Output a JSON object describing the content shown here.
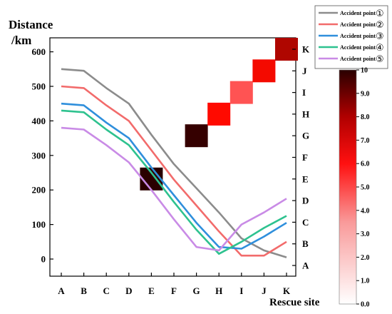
{
  "chart_data": {
    "type": "line",
    "ylabel_line1": "Distance",
    "ylabel_line2": "/km",
    "xlabel": "Rescue site",
    "categories": [
      "A",
      "B",
      "C",
      "D",
      "E",
      "F",
      "G",
      "H",
      "I",
      "J",
      "K"
    ],
    "ylim": [
      -20,
      640
    ],
    "yticks": [
      0,
      100,
      200,
      300,
      400,
      500,
      600
    ],
    "right_axis_labels": [
      "A",
      "B",
      "C",
      "D",
      "E",
      "F",
      "G",
      "H",
      "I",
      "J",
      "K"
    ],
    "legend_prefix": "Accident point",
    "series": [
      {
        "name": "Accident point ①",
        "marker": "①",
        "color": "#8c8c8c",
        "values": [
          550,
          545,
          495,
          450,
          360,
          275,
          205,
          135,
          60,
          25,
          5
        ]
      },
      {
        "name": "Accident point ②",
        "marker": "②",
        "color": "#f26b6b",
        "values": [
          500,
          495,
          445,
          400,
          315,
          230,
          155,
          80,
          10,
          10,
          50
        ]
      },
      {
        "name": "Accident point ③",
        "marker": "③",
        "color": "#2f8fdc",
        "values": [
          450,
          445,
          395,
          350,
          265,
          185,
          105,
          35,
          30,
          65,
          105
        ]
      },
      {
        "name": "Accident point ④",
        "marker": "④",
        "color": "#2ec28f",
        "values": [
          430,
          425,
          375,
          330,
          250,
          165,
          85,
          15,
          50,
          90,
          125
        ]
      },
      {
        "name": "Accident point ⑤",
        "marker": "⑤",
        "color": "#c98be6",
        "values": [
          380,
          375,
          330,
          280,
          200,
          115,
          35,
          25,
          100,
          135,
          175
        ]
      }
    ],
    "heat_cells": [
      {
        "x": "E",
        "y": "E",
        "value": 10
      },
      {
        "x": "G",
        "y": "G",
        "value": 9.8
      },
      {
        "x": "H",
        "y": "H",
        "value": 6
      },
      {
        "x": "I",
        "y": "I",
        "value": 4.2
      },
      {
        "x": "J",
        "y": "J",
        "value": 6.2
      },
      {
        "x": "K",
        "y": "K",
        "value": 7.5
      }
    ],
    "colorbar": {
      "min": 0,
      "max": 10,
      "ticks": [
        "0.0",
        "1.0",
        "2.0",
        "3.0",
        "4.0",
        "5.0",
        "6.0",
        "7.0",
        "8.0",
        "9.0",
        "10"
      ]
    }
  }
}
